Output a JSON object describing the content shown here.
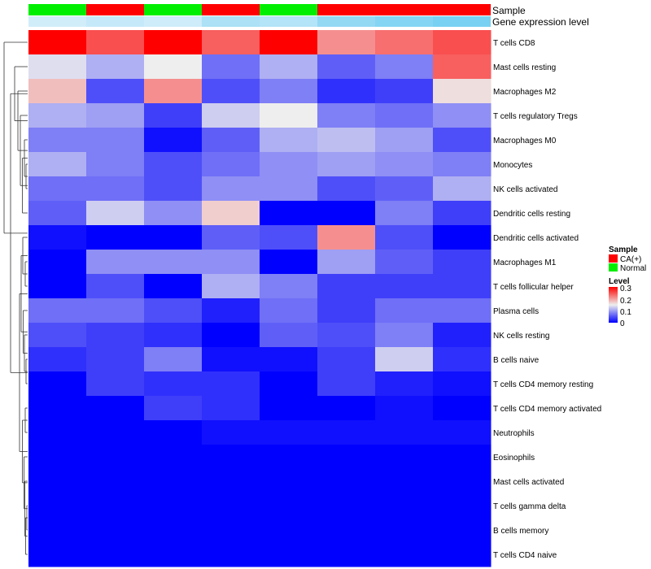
{
  "chart_data": {
    "type": "heatmap",
    "annotation_rows": [
      {
        "name": "Sample",
        "values": [
          "Normal",
          "CA(+)",
          "Normal",
          "CA(+)",
          "Normal",
          "CA(+)",
          "CA(+)",
          "CA(+)"
        ],
        "colors": {
          "CA(+)": "#ff0000",
          "Normal": "#00ee00"
        }
      },
      {
        "name": "Gene expression level",
        "values": [
          0.2,
          0.28,
          0.22,
          0.45,
          0.4,
          0.62,
          0.72,
          0.8
        ],
        "color_low": "#eef6fb",
        "color_high": "#5bc8f0"
      }
    ],
    "rows": [
      "T cells CD8",
      "Mast cells resting",
      "Macrophages M2",
      "T cells regulatory  Tregs",
      "Macrophages M0",
      "Monocytes",
      "NK cells activated",
      "Dendritic cells resting",
      "Dendritic cells activated",
      "Macrophages M1",
      "T cells follicular helper",
      "Plasma cells",
      "NK cells resting",
      "B cells naive",
      "T cells CD4 memory resting",
      "T cells CD4 memory activated",
      "Neutrophils",
      "Eosinophils",
      "Mast cells activated",
      "T cells gamma delta",
      "B cells memory",
      "T cells CD4 naive"
    ],
    "values": [
      [
        0.3,
        0.25,
        0.3,
        0.24,
        0.3,
        0.21,
        0.23,
        0.25
      ],
      [
        0.14,
        0.11,
        0.15,
        0.07,
        0.11,
        0.06,
        0.08,
        0.24
      ],
      [
        0.18,
        0.05,
        0.21,
        0.05,
        0.08,
        0.03,
        0.04,
        0.16
      ],
      [
        0.11,
        0.1,
        0.04,
        0.13,
        0.15,
        0.08,
        0.07,
        0.09
      ],
      [
        0.08,
        0.08,
        0.01,
        0.06,
        0.11,
        0.12,
        0.1,
        0.05
      ],
      [
        0.11,
        0.08,
        0.05,
        0.07,
        0.09,
        0.1,
        0.09,
        0.08
      ],
      [
        0.07,
        0.07,
        0.05,
        0.09,
        0.09,
        0.05,
        0.06,
        0.11
      ],
      [
        0.06,
        0.13,
        0.09,
        0.17,
        0.0,
        0.0,
        0.08,
        0.04
      ],
      [
        0.01,
        0.0,
        0.0,
        0.06,
        0.05,
        0.21,
        0.05,
        0.0
      ],
      [
        0.0,
        0.09,
        0.09,
        0.09,
        0.0,
        0.1,
        0.06,
        0.04
      ],
      [
        0.0,
        0.05,
        0.0,
        0.11,
        0.08,
        0.04,
        0.04,
        0.04
      ],
      [
        0.07,
        0.07,
        0.05,
        0.02,
        0.07,
        0.04,
        0.07,
        0.07
      ],
      [
        0.05,
        0.04,
        0.03,
        0.0,
        0.06,
        0.05,
        0.08,
        0.02
      ],
      [
        0.03,
        0.04,
        0.08,
        0.01,
        0.01,
        0.04,
        0.13,
        0.03
      ],
      [
        0.0,
        0.04,
        0.03,
        0.03,
        0.0,
        0.04,
        0.02,
        0.01
      ],
      [
        0.0,
        0.0,
        0.04,
        0.03,
        0.0,
        0.0,
        0.01,
        0.0
      ],
      [
        0.0,
        0.0,
        0.0,
        0.01,
        0.01,
        0.01,
        0.01,
        0.01
      ],
      [
        0.0,
        0.0,
        0.0,
        0.0,
        0.0,
        0.0,
        0.0,
        0.0
      ],
      [
        0.0,
        0.0,
        0.0,
        0.0,
        0.0,
        0.0,
        0.0,
        0.0
      ],
      [
        0.0,
        0.0,
        0.0,
        0.0,
        0.0,
        0.0,
        0.0,
        0.0
      ],
      [
        0.0,
        0.0,
        0.0,
        0.0,
        0.0,
        0.0,
        0.0,
        0.0
      ],
      [
        0.0,
        0.0,
        0.0,
        0.0,
        0.0,
        0.0,
        0.0,
        0.0
      ]
    ],
    "color_scale": {
      "low": "#0000ff",
      "mid": "#eeeeee",
      "high": "#ff0000",
      "min": 0,
      "mid_value": 0.15,
      "max": 0.3
    },
    "row_dendrogram": true,
    "legend": {
      "position": "right",
      "sample_title": "Sample",
      "sample_entries": [
        "CA(+)",
        "Normal"
      ],
      "level_title": "Level",
      "level_ticks": [
        "0.3",
        "0.2",
        "0.1",
        "0"
      ]
    }
  }
}
